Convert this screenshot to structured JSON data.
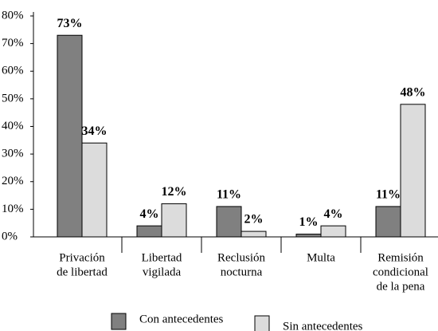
{
  "chart_data": {
    "type": "bar",
    "categories": [
      [
        "Privación",
        "de libertad"
      ],
      [
        "Libertad",
        "vigilada"
      ],
      [
        "Reclusión",
        "nocturna"
      ],
      [
        "Multa"
      ],
      [
        "Remisión",
        "condicional",
        "de la pena"
      ]
    ],
    "series": [
      {
        "name": "Con antecedentes",
        "color": "#808080",
        "values": [
          73,
          4,
          11,
          1,
          11
        ],
        "value_labels": [
          "73%",
          "4%",
          "11%",
          "1%",
          "11%"
        ]
      },
      {
        "name": "Sin antecedentes",
        "color": "#dcdcdc",
        "values": [
          34,
          12,
          2,
          4,
          48
        ],
        "value_labels": [
          "34%",
          "12%",
          "2%",
          "4%",
          "48%"
        ]
      }
    ],
    "ylim": [
      0,
      80
    ],
    "yticks": [
      {
        "value": 0,
        "label": "0%"
      },
      {
        "value": 10,
        "label": "10%"
      },
      {
        "value": 20,
        "label": "20%"
      },
      {
        "value": 30,
        "label": "30%"
      },
      {
        "value": 40,
        "label": "40%"
      },
      {
        "value": 50,
        "label": "50%"
      },
      {
        "value": 60,
        "label": "60%"
      },
      {
        "value": 70,
        "label": "70%"
      },
      {
        "value": 80,
        "label": "80%"
      }
    ]
  }
}
